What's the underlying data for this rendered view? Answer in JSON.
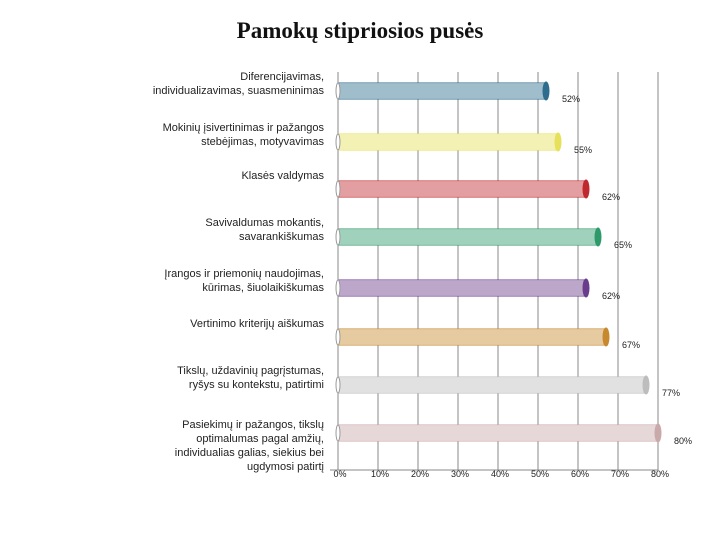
{
  "chart_data": {
    "type": "bar",
    "orientation": "horizontal",
    "title": "Pamokų stipriosios pusės",
    "xlabel": "",
    "ylabel": "",
    "xlim": [
      0,
      80
    ],
    "grid": true,
    "x_ticks": [
      "0%",
      "10%",
      "20%",
      "30%",
      "40%",
      "50%",
      "60%",
      "70%",
      "80%"
    ],
    "categories": [
      [
        "Diferencijavimas,",
        "individualizavimas, suasmeninimas"
      ],
      [
        "Mokinių įsivertinimas ir pažangos",
        "stebėjimas, motyvavimas"
      ],
      [
        "Klasės valdymas"
      ],
      [
        "Savivaldumas mokantis,",
        "savarankiškumas"
      ],
      [
        "Įrangos ir priemonių naudojimas,",
        "kūrimas, šiuolaikiškumas"
      ],
      [
        "Vertinimo kriterijų aiškumas"
      ],
      [
        "Tikslų, uždavinių pagrįstumas,",
        "ryšys su kontekstu, patirtimi"
      ],
      [
        "Pasiekimų ir pažangos, tikslų",
        "optimalumas pagal amžių,",
        "individualias galias, siekius bei",
        "ugdymosi patirtį"
      ]
    ],
    "values": [
      52,
      55,
      62,
      65,
      62,
      67,
      77,
      80
    ],
    "value_labels": [
      "52%",
      "55%",
      "62%",
      "65%",
      "62%",
      "67%",
      "77%",
      "80%"
    ],
    "colors": [
      "#2e6d8e",
      "#e6e05a",
      "#c0282d",
      "#2e9a6a",
      "#6a3d8c",
      "#c7892e",
      "#bdbdbd",
      "#c9a9a9"
    ]
  }
}
